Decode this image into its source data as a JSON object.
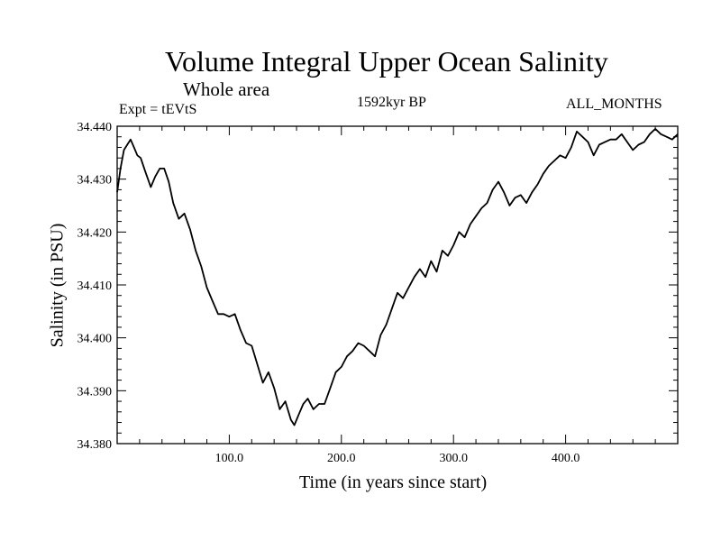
{
  "title": "Volume Integral Upper Ocean Salinity",
  "subtitle": "Whole area",
  "experiment": "Expt = tEVtS",
  "period": "1592kyr BP",
  "months": "ALL_MONTHS",
  "chart_data": {
    "type": "line",
    "xlabel": "Time (in years since start)",
    "ylabel": "Salinity (in PSU)",
    "xlim": [
      0,
      500
    ],
    "ylim": [
      34.38,
      34.44
    ],
    "x_ticks": [
      100,
      200,
      300,
      400
    ],
    "x_tick_labels": [
      "100.0",
      "200.0",
      "300.0",
      "400.0"
    ],
    "y_ticks": [
      34.38,
      34.39,
      34.4,
      34.41,
      34.42,
      34.43,
      34.44
    ],
    "y_tick_labels": [
      "34.380",
      "34.390",
      "34.400",
      "34.410",
      "34.420",
      "34.430",
      "34.440"
    ],
    "grid": false,
    "series": [
      {
        "name": "Salinity",
        "x": [
          0,
          3,
          6,
          9,
          12,
          15,
          18,
          21,
          25,
          30,
          34,
          38,
          42,
          46,
          50,
          55,
          60,
          65,
          70,
          75,
          80,
          85,
          90,
          95,
          100,
          105,
          110,
          115,
          120,
          125,
          130,
          135,
          140,
          145,
          150,
          155,
          158,
          162,
          166,
          170,
          175,
          180,
          185,
          190,
          195,
          200,
          205,
          210,
          215,
          220,
          225,
          230,
          235,
          240,
          245,
          250,
          255,
          260,
          265,
          270,
          275,
          280,
          285,
          290,
          295,
          300,
          305,
          310,
          315,
          320,
          325,
          330,
          335,
          340,
          345,
          350,
          355,
          360,
          365,
          370,
          375,
          380,
          385,
          390,
          395,
          400,
          405,
          410,
          415,
          420,
          425,
          430,
          435,
          440,
          445,
          450,
          455,
          460,
          465,
          470,
          475,
          480,
          485,
          490,
          495,
          500
        ],
        "values": [
          34.4275,
          34.432,
          34.4355,
          34.4365,
          34.4375,
          34.436,
          34.4345,
          34.434,
          34.4315,
          34.4285,
          34.4305,
          34.432,
          34.432,
          34.4295,
          34.4255,
          34.4225,
          34.4235,
          34.4205,
          34.4165,
          34.4135,
          34.4095,
          34.407,
          34.4045,
          34.4045,
          34.404,
          34.4045,
          34.4015,
          34.399,
          34.3985,
          34.395,
          34.3915,
          34.3935,
          34.3905,
          34.3865,
          34.388,
          34.3845,
          34.3835,
          34.3855,
          34.3875,
          34.3885,
          34.3865,
          34.3875,
          34.3875,
          34.3905,
          34.3935,
          34.3945,
          34.3965,
          34.3975,
          34.399,
          34.3985,
          34.3975,
          34.3965,
          34.4005,
          34.4025,
          34.4055,
          34.4085,
          34.4075,
          34.4095,
          34.4115,
          34.413,
          34.4115,
          34.4145,
          34.4125,
          34.4165,
          34.4155,
          34.4175,
          34.42,
          34.419,
          34.4215,
          34.423,
          34.4245,
          34.4255,
          34.428,
          34.4295,
          34.4275,
          34.425,
          34.4265,
          34.427,
          34.4255,
          34.4275,
          34.429,
          34.431,
          34.4325,
          34.4335,
          34.4345,
          34.434,
          34.436,
          34.439,
          34.438,
          34.437,
          34.4345,
          34.4365,
          34.437,
          34.4375,
          34.4375,
          34.4385,
          34.437,
          34.4355,
          34.4365,
          34.437,
          34.4385,
          34.4395,
          34.4385,
          34.438,
          34.4375,
          34.4385
        ]
      }
    ]
  }
}
